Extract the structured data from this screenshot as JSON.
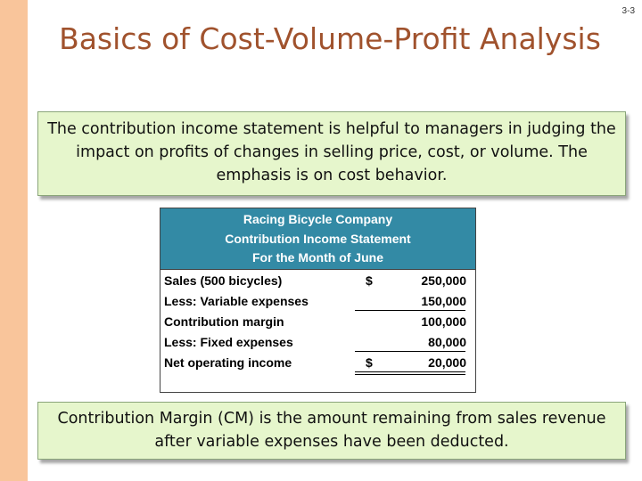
{
  "slide_number": "3-3",
  "title": "Basics of Cost-Volume-Profit Analysis",
  "intro_text": "The contribution income statement is helpful to managers in judging the impact on profits of changes in selling price, cost, or volume. The emphasis is on cost behavior.",
  "statement": {
    "company": "Racing Bicycle Company",
    "name": "Contribution Income Statement",
    "period": "For the Month of June",
    "rows": [
      {
        "label": "Sales (500 bicycles)",
        "currency": "$",
        "amount": "250,000"
      },
      {
        "label": "Less: Variable expenses",
        "currency": "",
        "amount": "150,000"
      },
      {
        "label": "Contribution margin",
        "currency": "",
        "amount": "100,000"
      },
      {
        "label": "Less: Fixed expenses",
        "currency": "",
        "amount": "80,000"
      },
      {
        "label": "Net operating income",
        "currency": "$",
        "amount": "20,000"
      }
    ]
  },
  "definition_text": "Contribution Margin (CM) is the amount remaining from sales revenue after variable expenses have been deducted.",
  "colors": {
    "title": "#a0522d",
    "accent_band": "#f9c59b",
    "callout_fill": "#e6f6cc",
    "table_header": "#338aa5"
  }
}
